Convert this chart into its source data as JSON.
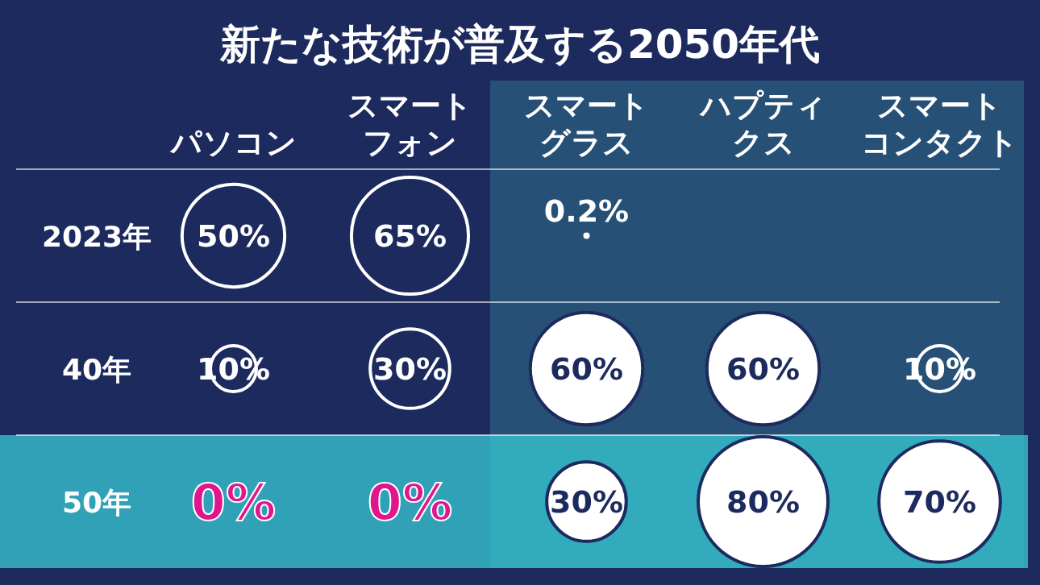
{
  "chart_data": {
    "type": "heatmap",
    "title": "新たな技術が普及する2050年代",
    "categories": [
      "パソコン",
      "スマートフォン",
      "スマートグラス",
      "ハプティクス",
      "スマートコンタクト"
    ],
    "y_categories": [
      "2023年",
      "40年",
      "50年"
    ],
    "cells": [
      [
        50,
        65,
        0.2,
        null,
        null
      ],
      [
        10,
        30,
        60,
        60,
        10
      ],
      [
        0,
        0,
        30,
        80,
        70
      ]
    ],
    "cell_labels": [
      [
        "50%",
        "65%",
        "0.2%",
        null,
        null
      ],
      [
        "10%",
        "30%",
        "60%",
        "60%",
        "10%"
      ],
      [
        "0%",
        "0%",
        "30%",
        "80%",
        "70%"
      ]
    ]
  }
}
